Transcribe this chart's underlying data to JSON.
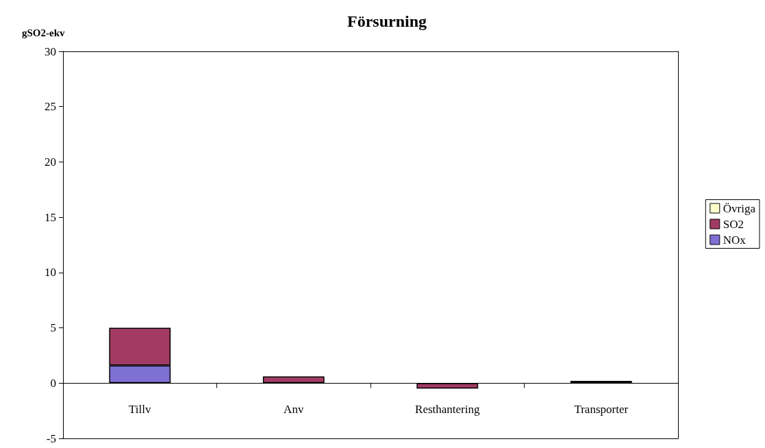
{
  "chart_data": {
    "type": "bar",
    "title": "Försurning",
    "ylabel": "gSO2-ekv",
    "categories": [
      "Tillv",
      "Anv",
      "Resthantering",
      "Transporter"
    ],
    "stacked": true,
    "series": [
      {
        "name": "NOx",
        "color": "#7f70d4",
        "values": [
          1.6,
          null,
          0,
          null
        ]
      },
      {
        "name": "SO2",
        "color": "#a23b63",
        "values": [
          3.4,
          0.6,
          -0.5,
          0.2
        ]
      },
      {
        "name": "Övriga",
        "color": "#ffffcc",
        "values": [
          0,
          0,
          0,
          0
        ]
      }
    ],
    "ylim": [
      -5,
      30
    ],
    "yticks": [
      -5,
      0,
      5,
      10,
      15,
      20,
      25,
      30
    ],
    "grid": false,
    "legend": "right"
  }
}
